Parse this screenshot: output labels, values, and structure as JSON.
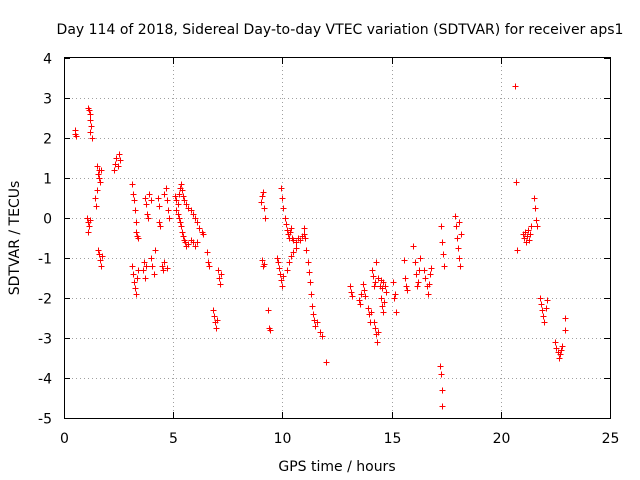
{
  "chart_data": {
    "type": "scatter",
    "title": "Day 114 of 2018, Sidereal Day-to-day VTEC variation (SDTVAR) for receiver aps1",
    "xlabel": "GPS time / hours",
    "ylabel": "SDTVAR / TECUs",
    "xlim": [
      0,
      25
    ],
    "ylim": [
      -5,
      4
    ],
    "xticks": [
      "0",
      "5",
      "10",
      "15",
      "20",
      "25"
    ],
    "yticks": [
      "4",
      "3",
      "2",
      "1",
      "0",
      "-1",
      "-2",
      "-3",
      "-4",
      "-5"
    ],
    "grid": true,
    "marker": "+",
    "color": "#ff0000",
    "series": [
      {
        "name": "aps1",
        "points": [
          [
            0.5,
            2.2
          ],
          [
            0.5,
            2.1
          ],
          [
            0.55,
            2.05
          ],
          [
            1.1,
            2.75
          ],
          [
            1.15,
            2.7
          ],
          [
            1.2,
            2.6
          ],
          [
            1.2,
            2.45
          ],
          [
            1.25,
            2.3
          ],
          [
            1.2,
            2.15
          ],
          [
            1.3,
            2.0
          ],
          [
            1.05,
            0.0
          ],
          [
            1.1,
            -0.1
          ],
          [
            1.15,
            -0.2
          ],
          [
            1.1,
            -0.35
          ],
          [
            1.2,
            -0.05
          ],
          [
            1.4,
            0.5
          ],
          [
            1.45,
            0.3
          ],
          [
            1.5,
            0.7
          ],
          [
            1.5,
            1.3
          ],
          [
            1.55,
            1.1
          ],
          [
            1.6,
            1.2
          ],
          [
            1.6,
            1.0
          ],
          [
            1.65,
            0.9
          ],
          [
            1.7,
            1.2
          ],
          [
            1.55,
            -0.8
          ],
          [
            1.6,
            -0.9
          ],
          [
            1.65,
            -1.05
          ],
          [
            1.7,
            -1.2
          ],
          [
            1.75,
            -0.95
          ],
          [
            2.3,
            1.2
          ],
          [
            2.35,
            1.35
          ],
          [
            2.4,
            1.5
          ],
          [
            2.45,
            1.3
          ],
          [
            2.5,
            1.6
          ],
          [
            2.55,
            1.45
          ],
          [
            3.1,
            0.85
          ],
          [
            3.15,
            0.6
          ],
          [
            3.2,
            0.45
          ],
          [
            3.25,
            0.2
          ],
          [
            3.3,
            -0.1
          ],
          [
            3.3,
            -0.35
          ],
          [
            3.35,
            -0.45
          ],
          [
            3.4,
            -0.5
          ],
          [
            3.1,
            -1.2
          ],
          [
            3.15,
            -1.4
          ],
          [
            3.2,
            -1.6
          ],
          [
            3.25,
            -1.75
          ],
          [
            3.3,
            -1.9
          ],
          [
            3.35,
            -1.5
          ],
          [
            3.4,
            -1.3
          ],
          [
            3.6,
            -1.3
          ],
          [
            3.65,
            -1.1
          ],
          [
            3.7,
            -1.5
          ],
          [
            3.75,
            -1.2
          ],
          [
            3.7,
            0.5
          ],
          [
            3.75,
            0.35
          ],
          [
            3.8,
            0.1
          ],
          [
            3.85,
            0.0
          ],
          [
            3.9,
            0.6
          ],
          [
            4.0,
            0.45
          ],
          [
            4.0,
            -1.0
          ],
          [
            4.05,
            -1.2
          ],
          [
            4.1,
            -1.4
          ],
          [
            4.15,
            -0.8
          ],
          [
            4.3,
            0.5
          ],
          [
            4.35,
            0.3
          ],
          [
            4.35,
            -0.1
          ],
          [
            4.4,
            -0.2
          ],
          [
            4.5,
            -1.2
          ],
          [
            4.55,
            -1.3
          ],
          [
            4.6,
            -1.1
          ],
          [
            4.7,
            -1.25
          ],
          [
            4.6,
            0.6
          ],
          [
            4.65,
            0.75
          ],
          [
            4.7,
            0.45
          ],
          [
            4.75,
            0.2
          ],
          [
            4.8,
            0.0
          ],
          [
            5.1,
            0.55
          ],
          [
            5.15,
            0.45
          ],
          [
            5.2,
            0.35
          ],
          [
            5.25,
            0.6
          ],
          [
            5.3,
            0.75
          ],
          [
            5.35,
            0.85
          ],
          [
            5.4,
            0.7
          ],
          [
            5.45,
            0.55
          ],
          [
            5.15,
            0.2
          ],
          [
            5.2,
            0.1
          ],
          [
            5.25,
            0.0
          ],
          [
            5.3,
            -0.1
          ],
          [
            5.35,
            -0.2
          ],
          [
            5.4,
            -0.35
          ],
          [
            5.45,
            -0.45
          ],
          [
            5.5,
            -0.55
          ],
          [
            5.55,
            -0.6
          ],
          [
            5.6,
            -0.7
          ],
          [
            5.7,
            -0.65
          ],
          [
            5.8,
            -0.55
          ],
          [
            5.9,
            -0.6
          ],
          [
            6.0,
            -0.7
          ],
          [
            6.1,
            -0.6
          ],
          [
            5.5,
            0.45
          ],
          [
            5.6,
            0.35
          ],
          [
            5.7,
            0.25
          ],
          [
            5.8,
            0.2
          ],
          [
            5.9,
            0.1
          ],
          [
            6.0,
            0.0
          ],
          [
            6.1,
            -0.1
          ],
          [
            6.2,
            -0.25
          ],
          [
            6.3,
            -0.35
          ],
          [
            6.35,
            -0.4
          ],
          [
            6.55,
            -0.85
          ],
          [
            6.6,
            -1.1
          ],
          [
            6.65,
            -1.2
          ],
          [
            6.8,
            -2.3
          ],
          [
            6.85,
            -2.45
          ],
          [
            6.9,
            -2.6
          ],
          [
            6.95,
            -2.75
          ],
          [
            7.0,
            -2.55
          ],
          [
            7.05,
            -1.3
          ],
          [
            7.1,
            -1.5
          ],
          [
            7.15,
            -1.65
          ],
          [
            7.2,
            -1.4
          ],
          [
            9.0,
            0.4
          ],
          [
            9.05,
            0.55
          ],
          [
            9.1,
            0.65
          ],
          [
            9.15,
            0.25
          ],
          [
            9.2,
            0.0
          ],
          [
            9.05,
            -1.05
          ],
          [
            9.1,
            -1.2
          ],
          [
            9.15,
            -1.15
          ],
          [
            9.35,
            -2.3
          ],
          [
            9.4,
            -2.75
          ],
          [
            9.45,
            -2.8
          ],
          [
            9.75,
            -1.0
          ],
          [
            9.8,
            -1.1
          ],
          [
            9.85,
            -1.25
          ],
          [
            9.9,
            -1.4
          ],
          [
            9.95,
            -1.55
          ],
          [
            10.0,
            -1.7
          ],
          [
            10.05,
            -1.45
          ],
          [
            9.95,
            0.75
          ],
          [
            10.0,
            0.5
          ],
          [
            10.05,
            0.25
          ],
          [
            10.1,
            0.0
          ],
          [
            10.15,
            -0.15
          ],
          [
            10.2,
            -0.3
          ],
          [
            10.25,
            -0.4
          ],
          [
            10.3,
            -0.5
          ],
          [
            10.35,
            -0.35
          ],
          [
            10.4,
            -0.25
          ],
          [
            10.45,
            -0.5
          ],
          [
            10.5,
            -0.55
          ],
          [
            10.6,
            -0.6
          ],
          [
            10.7,
            -0.5
          ],
          [
            10.8,
            -0.55
          ],
          [
            10.9,
            -0.45
          ],
          [
            11.0,
            -0.4
          ],
          [
            10.2,
            -1.3
          ],
          [
            10.3,
            -1.1
          ],
          [
            10.4,
            -0.95
          ],
          [
            10.5,
            -0.85
          ],
          [
            10.6,
            -0.75
          ],
          [
            11.0,
            -0.25
          ],
          [
            11.05,
            -0.5
          ],
          [
            11.1,
            -0.8
          ],
          [
            11.15,
            -1.1
          ],
          [
            11.2,
            -1.35
          ],
          [
            11.25,
            -1.6
          ],
          [
            11.3,
            -1.9
          ],
          [
            11.35,
            -2.2
          ],
          [
            11.4,
            -2.4
          ],
          [
            11.45,
            -2.55
          ],
          [
            11.5,
            -2.7
          ],
          [
            11.6,
            -2.6
          ],
          [
            11.7,
            -2.85
          ],
          [
            11.8,
            -2.95
          ],
          [
            12.0,
            -3.6
          ],
          [
            13.1,
            -1.7
          ],
          [
            13.15,
            -1.85
          ],
          [
            13.2,
            -1.95
          ],
          [
            13.5,
            -2.05
          ],
          [
            13.55,
            -2.15
          ],
          [
            13.6,
            -1.9
          ],
          [
            13.7,
            -1.65
          ],
          [
            13.75,
            -1.8
          ],
          [
            13.8,
            -1.95
          ],
          [
            13.9,
            -2.25
          ],
          [
            13.95,
            -2.4
          ],
          [
            14.0,
            -2.6
          ],
          [
            14.05,
            -2.35
          ],
          [
            14.1,
            -1.3
          ],
          [
            14.15,
            -1.45
          ],
          [
            14.2,
            -1.7
          ],
          [
            14.25,
            -1.6
          ],
          [
            14.2,
            -2.6
          ],
          [
            14.25,
            -2.75
          ],
          [
            14.3,
            -2.9
          ],
          [
            14.35,
            -3.1
          ],
          [
            14.4,
            -2.85
          ],
          [
            14.5,
            -2.0
          ],
          [
            14.55,
            -2.2
          ],
          [
            14.6,
            -2.35
          ],
          [
            14.65,
            -2.1
          ],
          [
            14.3,
            -1.1
          ],
          [
            14.4,
            -1.5
          ],
          [
            14.45,
            -1.7
          ],
          [
            14.5,
            -1.55
          ],
          [
            14.55,
            -1.75
          ],
          [
            14.6,
            -1.6
          ],
          [
            14.7,
            -1.7
          ],
          [
            14.75,
            -1.85
          ],
          [
            15.05,
            -1.6
          ],
          [
            15.1,
            -2.0
          ],
          [
            15.15,
            -1.9
          ],
          [
            15.2,
            -2.35
          ],
          [
            15.55,
            -1.05
          ],
          [
            15.6,
            -1.5
          ],
          [
            15.65,
            -1.7
          ],
          [
            15.7,
            -1.8
          ],
          [
            16.0,
            -0.7
          ],
          [
            16.05,
            -1.1
          ],
          [
            16.1,
            -1.4
          ],
          [
            16.15,
            -1.7
          ],
          [
            16.2,
            -1.6
          ],
          [
            16.25,
            -1.3
          ],
          [
            16.3,
            -1.0
          ],
          [
            16.5,
            -1.3
          ],
          [
            16.55,
            -1.5
          ],
          [
            16.6,
            -1.7
          ],
          [
            16.65,
            -1.9
          ],
          [
            16.7,
            -1.65
          ],
          [
            16.75,
            -1.4
          ],
          [
            16.8,
            -1.25
          ],
          [
            17.25,
            -0.2
          ],
          [
            17.3,
            -0.6
          ],
          [
            17.35,
            -0.9
          ],
          [
            17.4,
            -1.2
          ],
          [
            17.2,
            -3.7
          ],
          [
            17.25,
            -3.9
          ],
          [
            17.3,
            -4.3
          ],
          [
            17.3,
            -4.7
          ],
          [
            17.9,
            0.05
          ],
          [
            17.95,
            -0.2
          ],
          [
            18.0,
            -0.5
          ],
          [
            18.05,
            -0.75
          ],
          [
            18.1,
            -1.0
          ],
          [
            18.15,
            -1.2
          ],
          [
            18.2,
            -0.4
          ],
          [
            18.1,
            -0.1
          ],
          [
            20.65,
            3.3
          ],
          [
            20.7,
            0.9
          ],
          [
            20.75,
            -0.8
          ],
          [
            21.0,
            -0.4
          ],
          [
            21.05,
            -0.5
          ],
          [
            21.1,
            -0.35
          ],
          [
            21.15,
            -0.6
          ],
          [
            21.2,
            -0.45
          ],
          [
            21.25,
            -0.3
          ],
          [
            21.3,
            -0.55
          ],
          [
            21.35,
            -0.4
          ],
          [
            21.4,
            -0.2
          ],
          [
            21.5,
            0.5
          ],
          [
            21.55,
            0.25
          ],
          [
            21.6,
            -0.05
          ],
          [
            21.65,
            -0.2
          ],
          [
            21.8,
            -2.0
          ],
          [
            21.85,
            -2.15
          ],
          [
            21.9,
            -2.3
          ],
          [
            21.95,
            -2.45
          ],
          [
            22.0,
            -2.6
          ],
          [
            22.05,
            -2.25
          ],
          [
            22.1,
            -2.05
          ],
          [
            22.5,
            -3.1
          ],
          [
            22.55,
            -3.25
          ],
          [
            22.6,
            -3.35
          ],
          [
            22.65,
            -3.5
          ],
          [
            22.7,
            -3.4
          ],
          [
            22.75,
            -3.3
          ],
          [
            22.8,
            -3.2
          ],
          [
            22.95,
            -2.5
          ],
          [
            22.95,
            -2.8
          ]
        ]
      }
    ]
  }
}
